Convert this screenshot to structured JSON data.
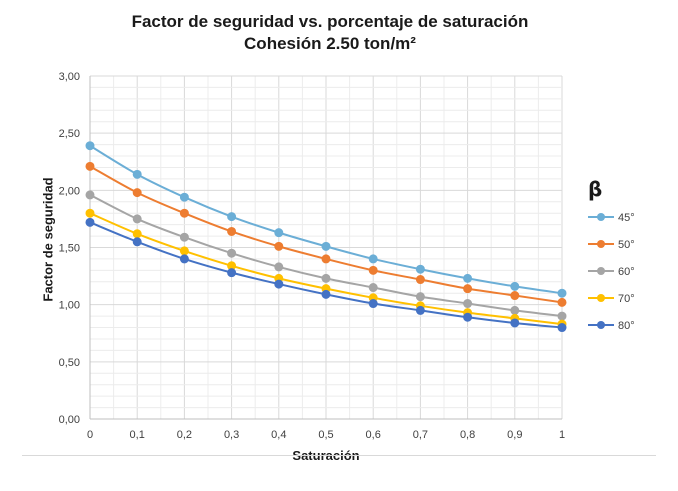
{
  "chart_data": {
    "type": "line",
    "title": "Factor de seguridad vs. porcentaje de saturación",
    "subtitle": "Cohesión 2.50 ton/m²",
    "xlabel": "Saturación",
    "ylabel": "Factor de seguridad",
    "x": [
      0,
      0.1,
      0.2,
      0.3,
      0.4,
      0.5,
      0.6,
      0.7,
      0.8,
      0.9,
      1
    ],
    "x_tick_labels": [
      "0",
      "0,1",
      "0,2",
      "0,3",
      "0,4",
      "0,5",
      "0,6",
      "0,7",
      "0,8",
      "0,9",
      "1"
    ],
    "y_ticks": [
      0,
      0.5,
      1.0,
      1.5,
      2.0,
      2.5,
      3.0
    ],
    "y_tick_labels": [
      "0,00",
      "0,50",
      "1,00",
      "1,50",
      "2,00",
      "2,50",
      "3,00"
    ],
    "xlim": [
      0,
      1
    ],
    "ylim": [
      0,
      3
    ],
    "grid": true,
    "legend_title": "β",
    "legend_position": "right",
    "series": [
      {
        "name": "45°",
        "color": "#6baed6",
        "values": [
          2.39,
          2.14,
          1.94,
          1.77,
          1.63,
          1.51,
          1.4,
          1.31,
          1.23,
          1.16,
          1.1
        ]
      },
      {
        "name": "50°",
        "color": "#ed7d31",
        "values": [
          2.21,
          1.98,
          1.8,
          1.64,
          1.51,
          1.4,
          1.3,
          1.22,
          1.14,
          1.08,
          1.02
        ]
      },
      {
        "name": "60°",
        "color": "#a5a5a5",
        "values": [
          1.96,
          1.75,
          1.59,
          1.45,
          1.33,
          1.23,
          1.15,
          1.07,
          1.01,
          0.95,
          0.9
        ]
      },
      {
        "name": "70°",
        "color": "#ffc000",
        "values": [
          1.8,
          1.62,
          1.47,
          1.34,
          1.23,
          1.14,
          1.06,
          0.99,
          0.93,
          0.88,
          0.83
        ]
      },
      {
        "name": "80°",
        "color": "#4472c4",
        "values": [
          1.72,
          1.55,
          1.4,
          1.28,
          1.18,
          1.09,
          1.01,
          0.95,
          0.89,
          0.84,
          0.8
        ]
      }
    ]
  }
}
